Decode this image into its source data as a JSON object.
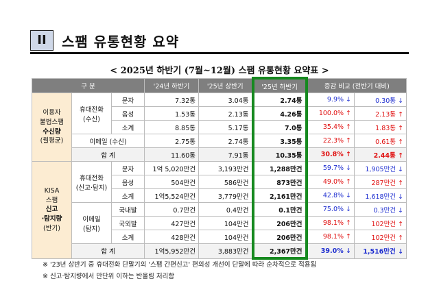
{
  "section": {
    "number": "II",
    "title": "스팸 유통현황 요약"
  },
  "subtitle": "<  2025년 하반기 (7월~12월) 스팸 유통현황 요약표  >",
  "headers": [
    "구 분",
    "'24년 하반기",
    "'25년 상반기",
    "'25년 하반기",
    "증감 비교 (전반기 대비)"
  ],
  "group1": {
    "label_line1": "이용자",
    "label_line2": "불법스팸",
    "label_line3": "수신량",
    "label_line4": "(월평균)",
    "phone_line1": "휴대전화",
    "phone_line2": "(수신)",
    "rows": [
      {
        "sub": "문자",
        "v24h2": "7.32통",
        "v25h1": "3.04통",
        "v25h2": "2.74통",
        "pct": "9.9% ↓",
        "diff": "0.30통 ↓",
        "pct_dir": "down",
        "diff_dir": "down"
      },
      {
        "sub": "음성",
        "v24h2": "1.53통",
        "v25h1": "2.13통",
        "v25h2": "4.26통",
        "pct": "100.0% ↑",
        "diff": "2.13통 ↑",
        "pct_dir": "up",
        "diff_dir": "up"
      },
      {
        "sub": "소계",
        "v24h2": "8.85통",
        "v25h1": "5.17통",
        "v25h2": "7.0통",
        "pct": "35.4% ↑",
        "diff": "1.83통 ↑",
        "pct_dir": "up",
        "diff_dir": "up"
      }
    ],
    "email_row": {
      "label": "이메일 (수신)",
      "v24h2": "2.75통",
      "v25h1": "2.74통",
      "v25h2": "3.35통",
      "pct": "22.3% ↑",
      "diff": "0.61통 ↑"
    },
    "total_row": {
      "label": "합 계",
      "v24h2": "11.60통",
      "v25h1": "7.91통",
      "v25h2": "10.35통",
      "pct": "30.8% ↑",
      "diff": "2.44통 ↑"
    }
  },
  "group2": {
    "label_line1": "KISA",
    "label_line2": "스팸",
    "label_line3": "신고",
    "label_line4": "·탐지량",
    "label_line5": "(반기)",
    "phone_line1": "휴대전화",
    "phone_line2": "(신고·탐지)",
    "phone_rows": [
      {
        "sub": "문자",
        "v24h2": "1억 5,020만건",
        "v25h1": "3,193만건",
        "v25h2": "1,288만건",
        "pct": "59.7% ↓",
        "diff": "1,905만건 ↓",
        "dir": "down"
      },
      {
        "sub": "음성",
        "v24h2": "504만건",
        "v25h1": "586만건",
        "v25h2": "873만건",
        "pct": "49.0% ↑",
        "diff": "287만건 ↑",
        "dir": "up"
      },
      {
        "sub": "소계",
        "v24h2": "1억5,524만건",
        "v25h1": "3,779만건",
        "v25h2": "2,161만건",
        "pct": "42.8% ↓",
        "diff": "1,618만건 ↓",
        "dir": "down"
      }
    ],
    "email_line1": "이메일",
    "email_line2": "(탐지)",
    "email_rows": [
      {
        "sub": "국내발",
        "v24h2": "0.7만건",
        "v25h1": "0.4만건",
        "v25h2": "0.1만건",
        "pct": "75.0% ↓",
        "diff": "0.3만건 ↓",
        "dir": "down"
      },
      {
        "sub": "국외발",
        "v24h2": "427만건",
        "v25h1": "104만건",
        "v25h2": "206만건",
        "pct": "98.1% ↑",
        "diff": "102만건 ↑",
        "dir": "up"
      },
      {
        "sub": "소계",
        "v24h2": "428만건",
        "v25h1": "104만건",
        "v25h2": "206만건",
        "pct": "98.1% ↑",
        "diff": "102만건 ↑",
        "dir": "up"
      }
    ],
    "total_row": {
      "label": "합 계",
      "v24h2": "1억5,952만건",
      "v25h1": "3,883만건",
      "v25h2": "2,367만건",
      "pct": "39.0% ↓",
      "diff": "1,516만건 ↓"
    }
  },
  "notes": [
    "※ '23년 상반기 중 휴대전화 단말기의 '스팸 간편신고' 편의성 개선이 단말에 따라 순차적으로 적용됨",
    "※ 신고·탐지량에서 만단위 이하는 반올림 처리함"
  ],
  "colors": {
    "highlight_border": "#16891f",
    "category_bg": "#fcecd2",
    "header_bg": "#7f7f7f",
    "up": "#e01010",
    "down": "#1f2fd0"
  }
}
